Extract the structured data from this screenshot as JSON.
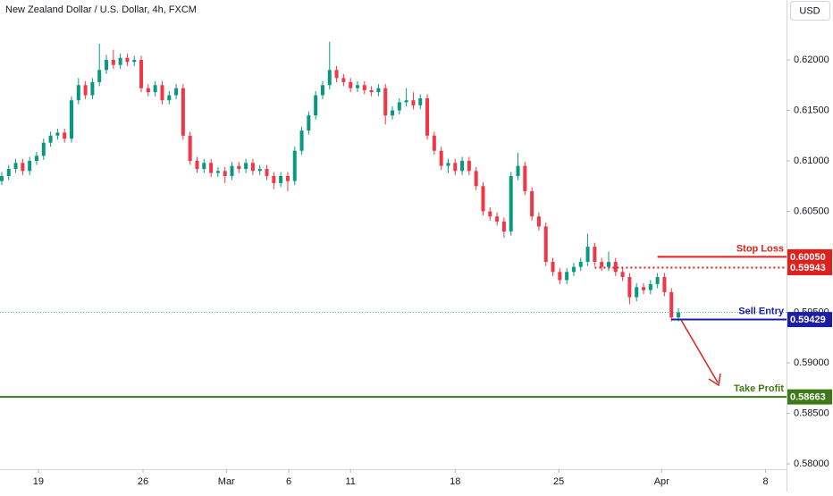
{
  "chart_data": {
    "type": "candlestick",
    "title": "New Zealand Dollar / U.S. Dollar, 4h, FXCM",
    "currency": "USD",
    "up_color": "#089981",
    "down_color": "#f23645",
    "x": [
      0,
      2,
      4,
      6,
      8,
      10,
      12,
      14,
      16,
      18,
      20,
      22,
      24,
      26,
      28,
      30,
      32,
      34,
      36,
      38,
      40,
      42,
      44,
      46,
      48,
      50,
      52,
      54,
      56,
      58,
      60,
      62,
      64,
      66,
      68,
      70,
      72,
      74,
      76,
      78,
      80,
      82,
      84,
      86,
      88,
      90,
      92,
      94,
      96,
      98,
      100,
      102,
      104,
      106,
      108,
      110,
      112,
      114,
      116,
      118,
      120,
      122,
      124,
      126,
      128,
      130,
      132,
      134,
      136,
      138,
      140,
      142,
      144,
      146,
      148,
      150,
      152,
      154,
      156,
      158,
      160,
      162,
      164,
      166,
      168,
      170,
      172,
      174,
      176,
      178,
      180,
      182,
      184,
      186,
      188,
      190,
      192,
      194
    ],
    "open": [
      0.608,
      0.6085,
      0.6092,
      0.6098,
      0.609,
      0.61,
      0.6105,
      0.6118,
      0.6125,
      0.6128,
      0.6122,
      0.616,
      0.6175,
      0.6165,
      0.6178,
      0.619,
      0.62,
      0.6195,
      0.6202,
      0.6198,
      0.62,
      0.6172,
      0.6168,
      0.6175,
      0.616,
      0.6165,
      0.6172,
      0.6125,
      0.61,
      0.6092,
      0.6098,
      0.6088,
      0.609,
      0.6085,
      0.6095,
      0.6092,
      0.6098,
      0.609,
      0.6092,
      0.6085,
      0.6078,
      0.6085,
      0.608,
      0.611,
      0.613,
      0.6145,
      0.6165,
      0.6175,
      0.619,
      0.6182,
      0.6178,
      0.6172,
      0.6175,
      0.617,
      0.6168,
      0.6172,
      0.6145,
      0.615,
      0.6158,
      0.616,
      0.6155,
      0.6162,
      0.6125,
      0.611,
      0.6095,
      0.6098,
      0.609,
      0.61,
      0.609,
      0.6075,
      0.605,
      0.6045,
      0.604,
      0.603,
      0.6085,
      0.6095,
      0.607,
      0.6045,
      0.6035,
      0.6,
      0.599,
      0.5982,
      0.599,
      0.5995,
      0.6,
      0.6015,
      0.6,
      0.5995,
      0.6,
      0.599,
      0.5985,
      0.5965,
      0.5975,
      0.5972,
      0.5978,
      0.5985,
      0.597,
      0.5945
    ],
    "high": [
      0.6089,
      0.6096,
      0.6102,
      0.6102,
      0.6104,
      0.6109,
      0.6122,
      0.6129,
      0.6132,
      0.6132,
      0.6164,
      0.6182,
      0.6179,
      0.6182,
      0.6216,
      0.6205,
      0.621,
      0.6206,
      0.6206,
      0.6204,
      0.6204,
      0.6176,
      0.6179,
      0.6179,
      0.6169,
      0.6176,
      0.6176,
      0.6129,
      0.6104,
      0.6102,
      0.6102,
      0.6094,
      0.6094,
      0.6099,
      0.6099,
      0.6102,
      0.6102,
      0.6096,
      0.6096,
      0.6089,
      0.6089,
      0.6089,
      0.6114,
      0.6134,
      0.6149,
      0.6169,
      0.6179,
      0.6218,
      0.6194,
      0.6186,
      0.6182,
      0.6179,
      0.6179,
      0.6174,
      0.6176,
      0.6176,
      0.6154,
      0.6162,
      0.6172,
      0.6168,
      0.6166,
      0.6166,
      0.6129,
      0.6114,
      0.6102,
      0.6102,
      0.6104,
      0.6104,
      0.6094,
      0.6079,
      0.6054,
      0.6049,
      0.6044,
      0.6089,
      0.6108,
      0.6099,
      0.6074,
      0.6049,
      0.6039,
      0.6004,
      0.5994,
      0.5994,
      0.5999,
      0.6004,
      0.6028,
      0.6019,
      0.6004,
      0.601,
      0.6004,
      0.5994,
      0.5989,
      0.5979,
      0.5979,
      0.5982,
      0.5989,
      0.5989,
      0.5974,
      0.5954
    ],
    "low": [
      0.6076,
      0.6081,
      0.6088,
      0.6086,
      0.6086,
      0.6096,
      0.6101,
      0.6114,
      0.6121,
      0.6118,
      0.6118,
      0.6156,
      0.6161,
      0.6161,
      0.6174,
      0.6186,
      0.6191,
      0.6191,
      0.6194,
      0.6194,
      0.6168,
      0.6164,
      0.6164,
      0.6156,
      0.6156,
      0.6161,
      0.6121,
      0.6096,
      0.6088,
      0.6088,
      0.6084,
      0.6084,
      0.6078,
      0.6081,
      0.6088,
      0.6088,
      0.6086,
      0.6086,
      0.6081,
      0.6072,
      0.6074,
      0.607,
      0.6076,
      0.6106,
      0.6126,
      0.6141,
      0.6161,
      0.6171,
      0.6178,
      0.6174,
      0.6168,
      0.6168,
      0.6166,
      0.6164,
      0.6164,
      0.6136,
      0.6141,
      0.6146,
      0.6154,
      0.6151,
      0.6151,
      0.6121,
      0.6106,
      0.6091,
      0.6088,
      0.6086,
      0.6086,
      0.6086,
      0.6071,
      0.6046,
      0.6041,
      0.6036,
      0.6024,
      0.6026,
      0.6081,
      0.6066,
      0.6041,
      0.6031,
      0.5996,
      0.5986,
      0.5978,
      0.5978,
      0.5986,
      0.5991,
      0.5996,
      0.5996,
      0.5991,
      0.5991,
      0.5986,
      0.5981,
      0.5958,
      0.5961,
      0.5968,
      0.5968,
      0.5974,
      0.5966,
      0.5941,
      0.5941
    ],
    "close": [
      0.6085,
      0.6092,
      0.6098,
      0.609,
      0.61,
      0.6105,
      0.6118,
      0.6125,
      0.6128,
      0.6122,
      0.616,
      0.6175,
      0.6165,
      0.6178,
      0.619,
      0.62,
      0.6195,
      0.6202,
      0.6198,
      0.62,
      0.6172,
      0.6168,
      0.6175,
      0.616,
      0.6165,
      0.6172,
      0.6125,
      0.61,
      0.6092,
      0.6098,
      0.6088,
      0.609,
      0.6085,
      0.6095,
      0.6092,
      0.6098,
      0.609,
      0.6092,
      0.6085,
      0.6078,
      0.6085,
      0.608,
      0.611,
      0.613,
      0.6145,
      0.6165,
      0.6175,
      0.619,
      0.6182,
      0.6178,
      0.6172,
      0.6175,
      0.617,
      0.6168,
      0.6172,
      0.6145,
      0.615,
      0.6158,
      0.616,
      0.6155,
      0.6162,
      0.6125,
      0.611,
      0.6095,
      0.6098,
      0.609,
      0.61,
      0.609,
      0.6075,
      0.605,
      0.6045,
      0.604,
      0.603,
      0.6085,
      0.6095,
      0.607,
      0.6045,
      0.6035,
      0.6,
      0.599,
      0.5982,
      0.599,
      0.5995,
      0.6,
      0.6015,
      0.6,
      0.5995,
      0.6,
      0.599,
      0.5985,
      0.5965,
      0.5975,
      0.5972,
      0.5978,
      0.5985,
      0.597,
      0.5945,
      0.595
    ],
    "xlim": [
      -0.5,
      225
    ],
    "xticks": [
      {
        "value": 10.5,
        "label": "19"
      },
      {
        "value": 40.5,
        "label": "26"
      },
      {
        "value": 64.4,
        "label": "Mar"
      },
      {
        "value": 82.3,
        "label": "6"
      },
      {
        "value": 100,
        "label": "11"
      },
      {
        "value": 130,
        "label": "18"
      },
      {
        "value": 159.7,
        "label": "25"
      },
      {
        "value": 189.2,
        "label": "Apr"
      },
      {
        "value": 219,
        "label": "8"
      }
    ],
    "ylim": [
      0.57726,
      0.62593
    ],
    "yticks": [
      {
        "value": 0.58,
        "label": "0.58000"
      },
      {
        "value": 0.585,
        "label": "0.58500"
      },
      {
        "value": 0.59,
        "label": "0.59000"
      },
      {
        "value": 0.595,
        "label": "0.59500"
      },
      {
        "value": 0.6,
        "label": "0.60000"
      },
      {
        "value": 0.605,
        "label": "0.60500"
      },
      {
        "value": 0.61,
        "label": "0.61000"
      },
      {
        "value": 0.615,
        "label": "0.61500"
      },
      {
        "value": 0.62,
        "label": "0.62000"
      }
    ],
    "levels": [
      {
        "name": "Stop Loss",
        "value": 0.6005,
        "label": "0.60050",
        "color": "#e0201c",
        "style": "solid",
        "from": 188
      },
      {
        "value": 0.59943,
        "label": "0.59943",
        "color": "#e0201c",
        "style": "dotted",
        "from": 170
      },
      {
        "name": "Sell Entry",
        "value": 0.59429,
        "label": "0.59429",
        "color": "#1b1fa8",
        "style": "solid",
        "from": 192
      },
      {
        "name": "Take Profit",
        "value": 0.58663,
        "label": "0.58663",
        "color": "#3d7a17",
        "style": "solid",
        "from": -0.5
      }
    ]
  }
}
